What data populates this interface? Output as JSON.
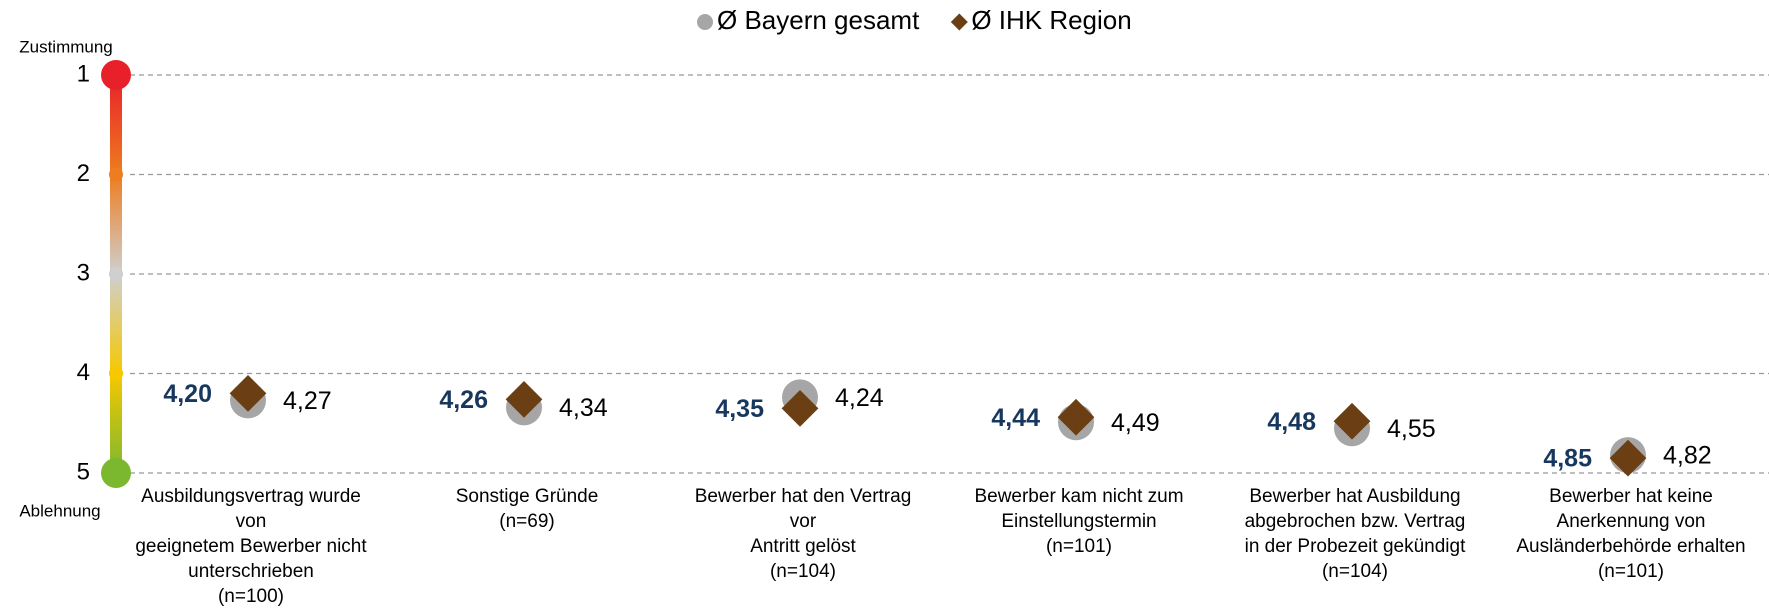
{
  "chart_data": {
    "type": "dot",
    "categories": [
      "Ausbildungsvertrag wurde\nvon\ngeeignetem Bewerber nicht\nunterschrieben\n(n=100)",
      "Sonstige Gründe\n(n=69)",
      "Bewerber hat den Vertrag\nvor\nAntritt gelöst\n(n=104)",
      "Bewerber kam nicht zum\nEinstellungstermin\n(n=101)",
      "Bewerber hat Ausbildung\nabgebrochen bzw. Vertrag\nin der Probezeit gekündigt\n(n=104)",
      "Bewerber hat keine\nAnerkennung von\nAusländerbehörde erhalten\n(n=101)"
    ],
    "series": [
      {
        "name": "Ø Bayern gesamt",
        "color": "#a6a6a6",
        "marker": "circle",
        "values": [
          4.27,
          4.34,
          4.24,
          4.49,
          4.55,
          4.82
        ],
        "value_labels": [
          "4,27",
          "4,34",
          "4,24",
          "4,49",
          "4,55",
          "4,82"
        ]
      },
      {
        "name": "Ø IHK Region",
        "color": "#6b3e14",
        "marker": "diamond",
        "label_color": "#17375e",
        "values": [
          4.2,
          4.26,
          4.35,
          4.44,
          4.48,
          4.85
        ],
        "value_labels": [
          "4,20",
          "4,26",
          "4,35",
          "4,44",
          "4,48",
          "4,85"
        ]
      }
    ],
    "ylim": [
      1,
      5
    ],
    "y_reversed": true,
    "yticks": [
      1,
      2,
      3,
      4,
      5
    ],
    "ytick_colors": [
      "#e8202a",
      "#ee7d1f",
      "#cfcfcf",
      "#f6c800",
      "#7cb82f"
    ],
    "y_top_label": "Zustimmung",
    "y_bottom_label": "Ablehnung",
    "grid": true,
    "legend": "top"
  }
}
